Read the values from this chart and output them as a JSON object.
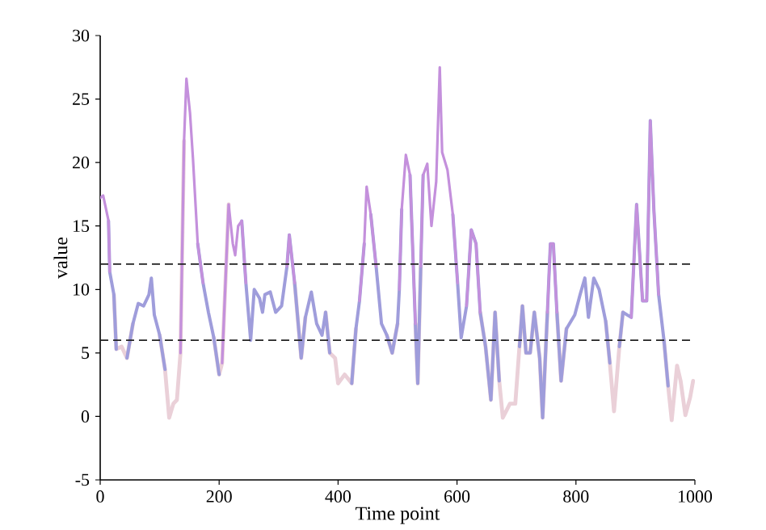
{
  "chart_data": {
    "type": "line",
    "xlabel": "Time point",
    "ylabel": "value",
    "xlim": [
      0,
      1000
    ],
    "ylim": [
      -5,
      30
    ],
    "xticks": [
      0,
      200,
      400,
      600,
      800,
      1000
    ],
    "yticks": [
      -5,
      0,
      5,
      10,
      15,
      20,
      25,
      30
    ],
    "x": [
      0,
      5,
      14,
      16,
      23,
      27,
      36,
      45,
      55,
      64,
      73,
      82,
      86,
      91,
      100,
      109,
      116,
      123,
      129,
      135,
      141,
      145,
      151,
      156,
      164,
      173,
      182,
      191,
      200,
      205,
      216,
      223,
      227,
      232,
      238,
      245,
      253,
      259,
      268,
      273,
      277,
      286,
      295,
      305,
      314,
      318,
      327,
      338,
      345,
      355,
      364,
      373,
      379,
      386,
      395,
      400,
      411,
      423,
      430,
      436,
      444,
      448,
      455,
      464,
      473,
      482,
      491,
      500,
      503,
      507,
      514,
      521,
      530,
      534,
      539,
      543,
      550,
      557,
      565,
      571,
      575,
      584,
      593,
      601,
      607,
      616,
      624,
      632,
      639,
      648,
      657,
      664,
      671,
      677,
      689,
      698,
      705,
      710,
      716,
      723,
      730,
      739,
      744,
      752,
      757,
      762,
      768,
      775,
      784,
      798,
      807,
      815,
      821,
      830,
      839,
      850,
      857,
      864,
      873,
      879,
      893,
      902,
      912,
      919,
      925,
      931,
      939,
      948,
      955,
      961,
      970,
      976,
      984,
      992,
      997
    ],
    "series": [
      {
        "color": "#ead0d8",
        "values": [
          null,
          null,
          null,
          null,
          9.6,
          5.3,
          5.5,
          4.6,
          7.3,
          null,
          null,
          null,
          null,
          null,
          6.4,
          3.7,
          -0.1,
          1,
          1.3,
          5,
          21.7,
          null,
          null,
          null,
          null,
          null,
          null,
          6.2,
          3.3,
          4.2,
          16.7,
          null,
          null,
          null,
          null,
          null,
          null,
          null,
          null,
          null,
          null,
          null,
          null,
          null,
          null,
          null,
          10.5,
          4.6,
          7.8,
          null,
          null,
          null,
          8.2,
          5,
          4.6,
          2.6,
          3.3,
          2.6,
          6.9,
          null,
          null,
          null,
          null,
          null,
          null,
          6.4,
          5,
          7.3,
          null,
          null,
          null,
          null,
          7.3,
          2.6,
          11.8,
          null,
          null,
          null,
          null,
          null,
          null,
          null,
          null,
          null,
          null,
          null,
          null,
          null,
          8.2,
          5.5,
          1.3,
          8.2,
          2.8,
          -0.1,
          1,
          1,
          5.5,
          8.7,
          5,
          5,
          8.2,
          4.6,
          -0.1,
          8.2,
          null,
          null,
          8.2,
          2.8,
          6.9,
          null,
          null,
          null,
          null,
          null,
          null,
          7.5,
          4.2,
          0.4,
          5.5,
          8.2,
          null,
          null,
          null,
          null,
          null,
          null,
          null,
          6,
          2.4,
          -0.3,
          4,
          2.8,
          0.1,
          1.5,
          2.8
        ]
      },
      {
        "color": "#9f9ddb",
        "values": [
          null,
          null,
          15.4,
          11.4,
          9.6,
          5.3,
          null,
          4.6,
          7.3,
          8.9,
          8.7,
          9.6,
          10.9,
          8,
          6.4,
          3.7,
          null,
          null,
          null,
          null,
          null,
          null,
          null,
          null,
          13.6,
          10.5,
          8.2,
          6.2,
          3.3,
          null,
          null,
          null,
          null,
          null,
          15.4,
          10.5,
          6,
          10,
          9.3,
          8.2,
          9.6,
          9.8,
          8.2,
          8.7,
          11.8,
          14.3,
          10.5,
          4.6,
          7.8,
          9.8,
          7.3,
          6.4,
          8.2,
          5,
          null,
          null,
          null,
          2.6,
          6.9,
          9.1,
          13.6,
          null,
          15.9,
          11.8,
          7.3,
          6.4,
          5,
          7.3,
          10,
          16.3,
          null,
          19,
          7.3,
          2.6,
          11.8,
          19,
          null,
          null,
          null,
          null,
          null,
          null,
          15.9,
          10.5,
          6.2,
          8.7,
          14.7,
          13.6,
          8.2,
          5.5,
          1.3,
          8.2,
          2.8,
          null,
          null,
          null,
          5.5,
          8.7,
          5,
          5,
          8.2,
          4.6,
          -0.1,
          8.2,
          13.6,
          13.6,
          8.2,
          2.8,
          6.9,
          8,
          9.6,
          10.9,
          7.8,
          10.9,
          10,
          7.5,
          4.2,
          null,
          5.5,
          8.2,
          7.8,
          16.7,
          9.1,
          9.1,
          23.3,
          16.3,
          9.6,
          6,
          2.4,
          null,
          null,
          null,
          null,
          null,
          null
        ]
      },
      {
        "color": "#c490dc",
        "values": [
          17.2,
          17.4,
          15.4,
          11.4,
          null,
          null,
          null,
          null,
          null,
          null,
          null,
          null,
          null,
          null,
          null,
          null,
          null,
          null,
          null,
          5,
          21.7,
          26.6,
          23.9,
          20.3,
          13.6,
          10.5,
          null,
          null,
          null,
          4.2,
          16.7,
          13.6,
          12.7,
          15,
          15.4,
          10.5,
          null,
          null,
          null,
          null,
          null,
          null,
          null,
          null,
          11.8,
          14.3,
          10.5,
          null,
          null,
          null,
          null,
          null,
          null,
          null,
          null,
          null,
          null,
          null,
          null,
          9.1,
          13.6,
          18.1,
          15.9,
          11.8,
          null,
          null,
          null,
          null,
          10,
          16.3,
          20.6,
          19,
          7.3,
          null,
          11.8,
          19,
          19.9,
          15,
          18.5,
          27.5,
          20.8,
          19.4,
          15.9,
          10.5,
          null,
          8.7,
          14.7,
          13.6,
          8.2,
          null,
          null,
          null,
          null,
          null,
          null,
          null,
          null,
          null,
          null,
          null,
          null,
          null,
          null,
          8.2,
          13.6,
          13.6,
          8.2,
          null,
          null,
          null,
          null,
          null,
          null,
          null,
          null,
          null,
          null,
          null,
          null,
          null,
          7.8,
          16.7,
          9.1,
          9.1,
          23.3,
          16.3,
          9.6,
          null,
          null,
          null,
          null,
          null,
          null,
          null,
          null
        ]
      }
    ],
    "ref_lines": [
      {
        "axis": "y",
        "value": 12,
        "color": "#222222",
        "line_style": "dashed"
      },
      {
        "axis": "y",
        "value": 6,
        "color": "#222222",
        "line_style": "dashed"
      }
    ]
  }
}
